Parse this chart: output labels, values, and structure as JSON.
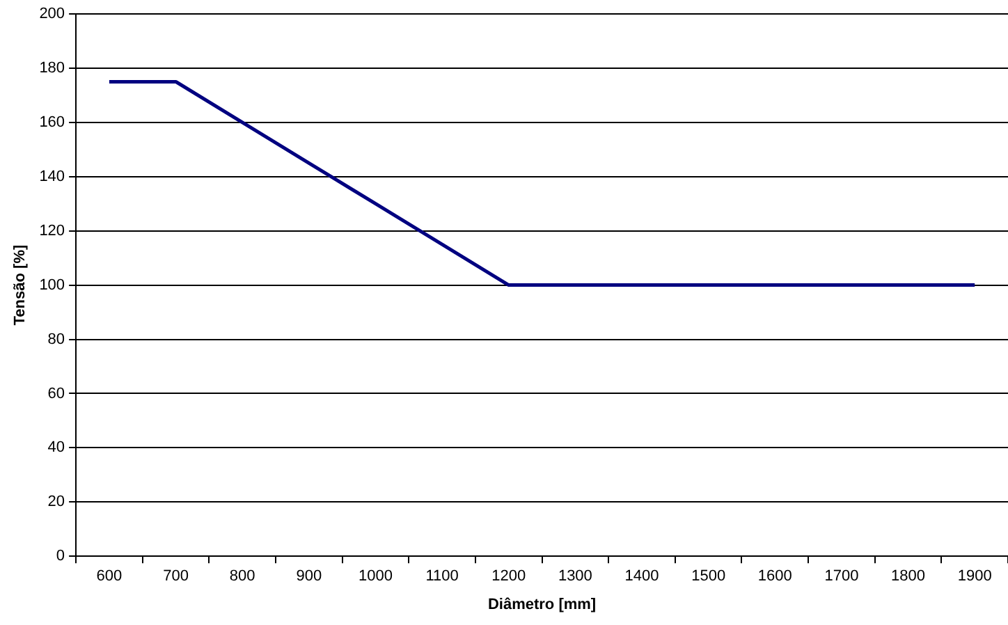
{
  "chart_data": {
    "type": "line",
    "xlabel": "Diâmetro [mm]",
    "ylabel": "Tensão [%]",
    "categories": [
      "600",
      "700",
      "800",
      "900",
      "1000",
      "1100",
      "1200",
      "1300",
      "1400",
      "1500",
      "1600",
      "1700",
      "1800",
      "1900"
    ],
    "values": [
      175,
      175,
      160,
      145,
      130,
      115,
      100,
      100,
      100,
      100,
      100,
      100,
      100,
      100
    ],
    "color": "#000080",
    "ylim": [
      0,
      200
    ],
    "yticks": [
      0,
      20,
      40,
      60,
      80,
      100,
      120,
      140,
      160,
      180,
      200
    ],
    "grid": "y",
    "marker": "none"
  }
}
